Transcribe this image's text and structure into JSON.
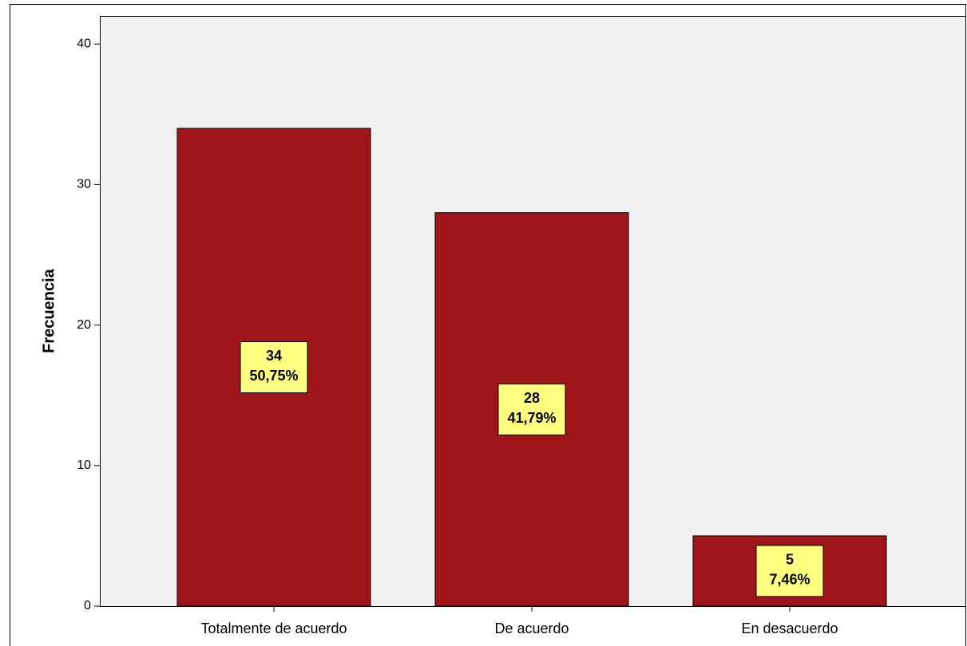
{
  "chart_data": {
    "type": "bar",
    "y_label": "Frecuencia",
    "categories": [
      "Totalmente de acuerdo",
      "De acuerdo",
      "En desacuerdo"
    ],
    "values": [
      34,
      28,
      5
    ],
    "percent_labels": [
      "50,75%",
      "41,79%",
      "7,46%"
    ],
    "color": "#a0151a",
    "label_color": "#ffff80",
    "background": "#f0f0f0",
    "ylim": [
      0,
      42
    ],
    "yticks": [
      0,
      10,
      20,
      30,
      40
    ],
    "grid": false
  }
}
